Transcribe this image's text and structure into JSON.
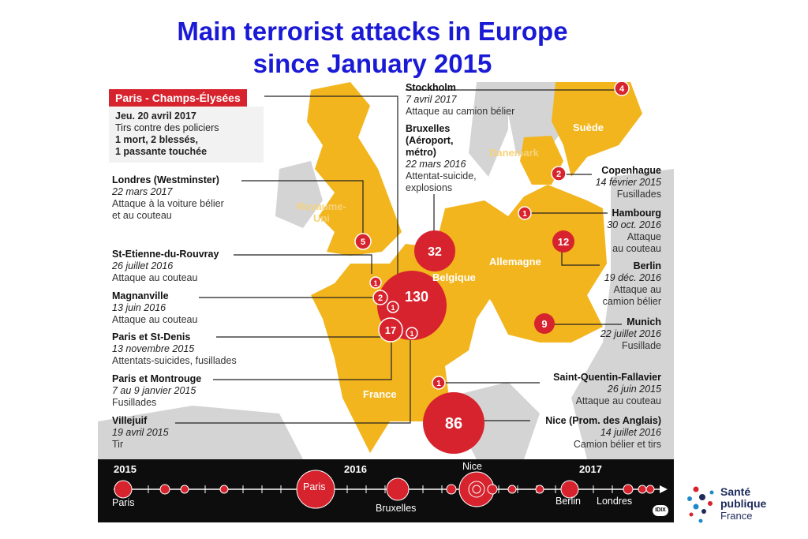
{
  "title": {
    "line1": "Main terrorist attacks in Europe",
    "line2": "since January 2015"
  },
  "colors": {
    "title": "#1a1ad6",
    "land_europe": "#f2b51d",
    "land_other": "#d4d4d4",
    "sea": "#ffffff",
    "attack": "#d7232e",
    "timeline_bg": "#0d0d0d"
  },
  "countries": {
    "uk": "Royaume-\nUni",
    "france": "France",
    "belgium": "Belgique",
    "germany": "Allemagne",
    "sweden": "Suède",
    "denmark": "Danemark"
  },
  "featured": {
    "heading": "Paris - Champs-Élysées",
    "date": "Jeu. 20 avril 2017",
    "description": "Tirs contre des policiers",
    "toll_line1": "1 mort, 2 blessés,",
    "toll_line2": "1 passante touchée"
  },
  "attacks": [
    {
      "id": "londres",
      "name": "Londres (Westminster)",
      "date": "22 mars 2017",
      "description": "Attaque à la voiture bélier\net au couteau",
      "victims": "5"
    },
    {
      "id": "stetienne",
      "name": "St-Etienne-du-Rouvray",
      "date": "26 juillet 2016",
      "description": "Attaque au couteau",
      "victims": "1"
    },
    {
      "id": "magnanville",
      "name": "Magnanville",
      "date": "13 juin 2016",
      "description": "Attaque au couteau",
      "victims": "2"
    },
    {
      "id": "paris_stdenis",
      "name": "Paris et St-Denis",
      "date": "13 novembre 2015",
      "description": "Attentats-suicides, fusillades",
      "victims": "130"
    },
    {
      "id": "paris_montrouge",
      "name": "Paris et Montrouge",
      "date": "7 au 9 janvier 2015",
      "description": "Fusillades",
      "victims": "17"
    },
    {
      "id": "villejuif",
      "name": "Villejuif",
      "date": "19 avril 2015",
      "description": "Tir",
      "victims": "1"
    },
    {
      "id": "champs",
      "name": "Paris - Champs-Élysées",
      "date": "20 avril 2017",
      "description": "Tirs contre des policiers",
      "victims": "1"
    },
    {
      "id": "stockholm",
      "name": "Stockholm",
      "date": "7 avril 2017",
      "description": "Attaque au camion bélier",
      "victims": "4"
    },
    {
      "id": "bruxelles",
      "name": "Bruxelles\n(Aéroport,\nmétro)",
      "date": "22 mars 2016",
      "description": "Attentat-suicide,\nexplosions",
      "victims": "32"
    },
    {
      "id": "copenhague",
      "name": "Copenhague",
      "date": "14 février 2015",
      "description": "Fusillades",
      "victims": "2"
    },
    {
      "id": "hambourg",
      "name": "Hambourg",
      "date": "30 oct. 2016",
      "description": "Attaque\nau couteau",
      "victims": "1"
    },
    {
      "id": "berlin",
      "name": "Berlin",
      "date": "19 déc. 2016",
      "description": "Attaque au\ncamion bélier",
      "victims": "12"
    },
    {
      "id": "munich",
      "name": "Munich",
      "date": "22 juillet 2016",
      "description": "Fusillade",
      "victims": "9"
    },
    {
      "id": "stquentin",
      "name": "Saint-Quentin-Fallavier",
      "date": "26 juin 2015",
      "description": "Attaque au couteau",
      "victims": "1"
    },
    {
      "id": "nice",
      "name": "Nice (Prom. des Anglais)",
      "date": "14 juillet 2016",
      "description": "Camion bélier et tirs",
      "victims": "86"
    }
  ],
  "timeline": {
    "years": [
      "2015",
      "2016",
      "2017"
    ],
    "labels": {
      "paris_left": "Paris",
      "paris_big": "Paris",
      "bruxelles": "Bruxelles",
      "nice": "Nice",
      "berlin": "Berlin",
      "londres": "Londres"
    },
    "credit": "IDIX"
  },
  "logo": {
    "line1": "Santé",
    "line2": "publique",
    "line3": "France"
  }
}
